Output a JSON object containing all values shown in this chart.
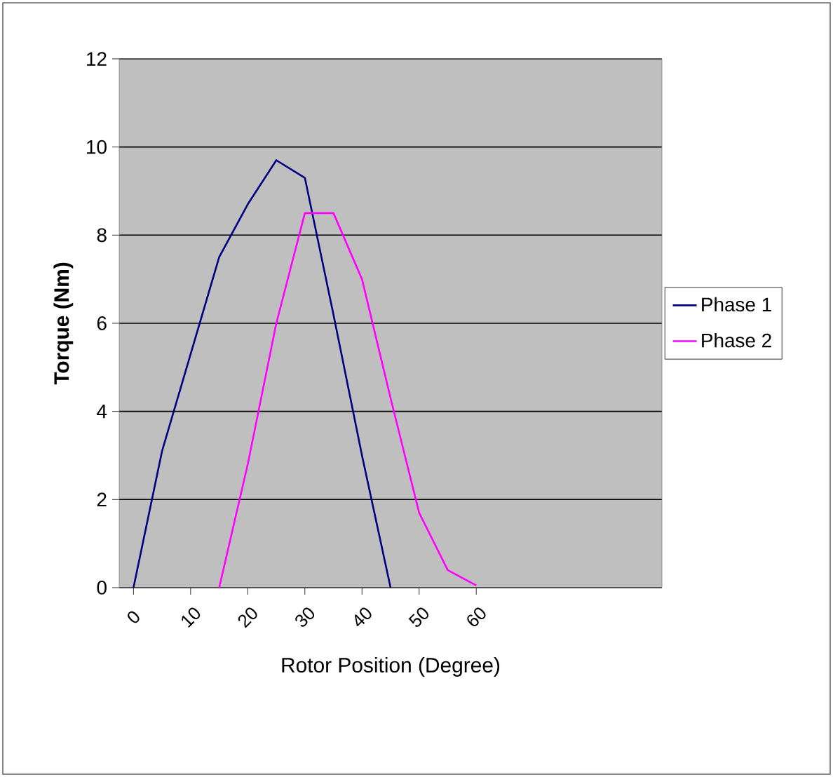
{
  "chart_data": {
    "type": "line",
    "xlabel": "Rotor Position (Degree)",
    "ylabel": "Torque (Nm)",
    "categories": [
      "0",
      null,
      "10",
      null,
      "20",
      null,
      "30",
      null,
      "40",
      null,
      "50",
      null,
      "60",
      null,
      null,
      null,
      null,
      null,
      null
    ],
    "series": [
      {
        "name": "Phase 1",
        "color": "#000080",
        "values": [
          0,
          3.1,
          5.3,
          7.5,
          8.7,
          9.7,
          9.3,
          6.2,
          3.0,
          0,
          null,
          null,
          null,
          null,
          null,
          null,
          null,
          null,
          null
        ]
      },
      {
        "name": "Phase 2",
        "color": "#ff00ff",
        "values": [
          null,
          null,
          null,
          0,
          2.8,
          6.0,
          8.5,
          8.5,
          7.0,
          4.3,
          1.7,
          0.4,
          0.05,
          null,
          null,
          null,
          null,
          null,
          null
        ]
      }
    ],
    "ylim": [
      0,
      12
    ],
    "yticks": [
      0,
      2,
      4,
      6,
      8,
      10,
      12
    ],
    "grid": "y",
    "legend": "right",
    "marker": "none",
    "line_style": "solid"
  }
}
